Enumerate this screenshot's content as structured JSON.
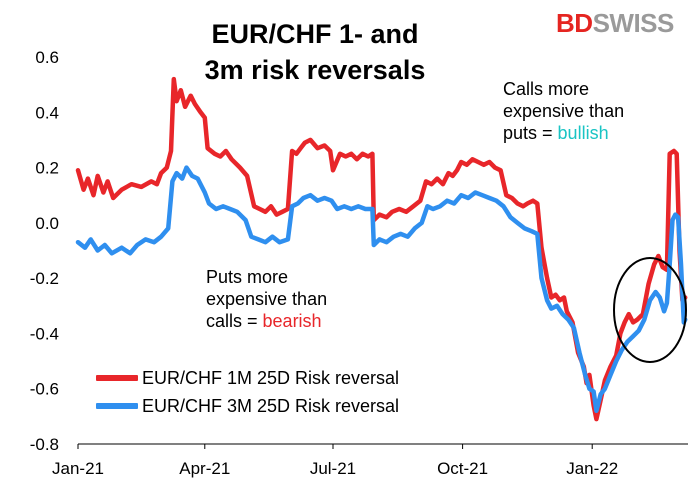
{
  "chart_data": {
    "type": "line",
    "title_line1": "EUR/CHF 1- and",
    "title_line2": "3m risk reversals",
    "xlabel": "",
    "ylabel": "",
    "ylim": [
      -0.8,
      0.6
    ],
    "yticks": [
      0.6,
      0.4,
      0.2,
      0.0,
      -0.2,
      -0.4,
      -0.6,
      -0.8
    ],
    "ytick_labels": [
      "0.6",
      "0.4",
      "0.2",
      "0.0",
      "-0.2",
      "-0.4",
      "-0.6",
      "-0.8"
    ],
    "xlim": [
      "2021-01-01",
      "2022-03-10"
    ],
    "xticks": [
      "2021-01-01",
      "2021-04-01",
      "2021-07-01",
      "2021-10-01",
      "2022-01-01"
    ],
    "xtick_labels": [
      "Jan-21",
      "Apr-21",
      "Jul-21",
      "Oct-21",
      "Jan-22"
    ],
    "grid": false,
    "legend_position": "lower-left",
    "series": [
      {
        "name": "EUR/CHF 1M 25D Risk reversal",
        "color": "#e8262a",
        "points": [
          [
            "2021-01-01",
            0.19
          ],
          [
            "2021-01-05",
            0.12
          ],
          [
            "2021-01-08",
            0.16
          ],
          [
            "2021-01-12",
            0.1
          ],
          [
            "2021-01-15",
            0.17
          ],
          [
            "2021-01-19",
            0.11
          ],
          [
            "2021-01-22",
            0.15
          ],
          [
            "2021-01-26",
            0.09
          ],
          [
            "2021-02-01",
            0.12
          ],
          [
            "2021-02-08",
            0.14
          ],
          [
            "2021-02-15",
            0.13
          ],
          [
            "2021-02-22",
            0.15
          ],
          [
            "2021-02-26",
            0.14
          ],
          [
            "2021-03-01",
            0.18
          ],
          [
            "2021-03-05",
            0.2
          ],
          [
            "2021-03-08",
            0.26
          ],
          [
            "2021-03-10",
            0.52
          ],
          [
            "2021-03-12",
            0.44
          ],
          [
            "2021-03-15",
            0.48
          ],
          [
            "2021-03-18",
            0.42
          ],
          [
            "2021-03-22",
            0.46
          ],
          [
            "2021-03-25",
            0.43
          ],
          [
            "2021-03-29",
            0.4
          ],
          [
            "2021-04-01",
            0.38
          ],
          [
            "2021-04-03",
            0.27
          ],
          [
            "2021-04-08",
            0.25
          ],
          [
            "2021-04-12",
            0.24
          ],
          [
            "2021-04-16",
            0.26
          ],
          [
            "2021-04-20",
            0.23
          ],
          [
            "2021-04-26",
            0.2
          ],
          [
            "2021-05-01",
            0.17
          ],
          [
            "2021-05-06",
            0.06
          ],
          [
            "2021-05-10",
            0.05
          ],
          [
            "2021-05-14",
            0.04
          ],
          [
            "2021-05-18",
            0.06
          ],
          [
            "2021-05-22",
            0.03
          ],
          [
            "2021-05-26",
            0.04
          ],
          [
            "2021-05-30",
            0.05
          ],
          [
            "2021-06-02",
            0.26
          ],
          [
            "2021-06-05",
            0.25
          ],
          [
            "2021-06-08",
            0.27
          ],
          [
            "2021-06-11",
            0.29
          ],
          [
            "2021-06-15",
            0.3
          ],
          [
            "2021-06-20",
            0.27
          ],
          [
            "2021-06-25",
            0.28
          ],
          [
            "2021-06-29",
            0.26
          ],
          [
            "2021-07-01",
            0.19
          ],
          [
            "2021-07-06",
            0.25
          ],
          [
            "2021-07-10",
            0.24
          ],
          [
            "2021-07-14",
            0.25
          ],
          [
            "2021-07-18",
            0.23
          ],
          [
            "2021-07-22",
            0.25
          ],
          [
            "2021-07-26",
            0.24
          ],
          [
            "2021-07-29",
            0.25
          ],
          [
            "2021-07-30",
            0.01
          ],
          [
            "2021-08-03",
            0.03
          ],
          [
            "2021-08-08",
            0.02
          ],
          [
            "2021-08-12",
            0.04
          ],
          [
            "2021-08-17",
            0.05
          ],
          [
            "2021-08-22",
            0.04
          ],
          [
            "2021-08-27",
            0.06
          ],
          [
            "2021-09-01",
            0.08
          ],
          [
            "2021-09-05",
            0.15
          ],
          [
            "2021-09-09",
            0.14
          ],
          [
            "2021-09-13",
            0.16
          ],
          [
            "2021-09-17",
            0.14
          ],
          [
            "2021-09-21",
            0.18
          ],
          [
            "2021-09-24",
            0.17
          ],
          [
            "2021-09-27",
            0.19
          ],
          [
            "2021-09-30",
            0.22
          ],
          [
            "2021-10-04",
            0.21
          ],
          [
            "2021-10-08",
            0.23
          ],
          [
            "2021-10-12",
            0.22
          ],
          [
            "2021-10-16",
            0.21
          ],
          [
            "2021-10-20",
            0.22
          ],
          [
            "2021-10-24",
            0.2
          ],
          [
            "2021-10-28",
            0.19
          ],
          [
            "2021-11-01",
            0.1
          ],
          [
            "2021-11-05",
            0.09
          ],
          [
            "2021-11-09",
            0.07
          ],
          [
            "2021-11-13",
            0.06
          ],
          [
            "2021-11-16",
            0.07
          ],
          [
            "2021-11-20",
            0.08
          ],
          [
            "2021-11-23",
            0.07
          ],
          [
            "2021-11-26",
            -0.09
          ],
          [
            "2021-11-30",
            -0.2
          ],
          [
            "2021-12-03",
            -0.27
          ],
          [
            "2021-12-06",
            -0.26
          ],
          [
            "2021-12-09",
            -0.28
          ],
          [
            "2021-12-12",
            -0.27
          ],
          [
            "2021-12-14",
            -0.32
          ],
          [
            "2021-12-18",
            -0.36
          ],
          [
            "2021-12-22",
            -0.47
          ],
          [
            "2021-12-26",
            -0.52
          ],
          [
            "2021-12-28",
            -0.58
          ],
          [
            "2021-12-30",
            -0.55
          ],
          [
            "2022-01-02",
            -0.66
          ],
          [
            "2022-01-04",
            -0.71
          ],
          [
            "2022-01-07",
            -0.64
          ],
          [
            "2022-01-10",
            -0.57
          ],
          [
            "2022-01-14",
            -0.52
          ],
          [
            "2022-01-18",
            -0.48
          ],
          [
            "2022-01-21",
            -0.4
          ],
          [
            "2022-01-24",
            -0.36
          ],
          [
            "2022-01-27",
            -0.33
          ],
          [
            "2022-01-30",
            -0.36
          ],
          [
            "2022-02-02",
            -0.35
          ],
          [
            "2022-02-06",
            -0.33
          ],
          [
            "2022-02-10",
            -0.22
          ],
          [
            "2022-02-14",
            -0.15
          ],
          [
            "2022-02-17",
            -0.12
          ],
          [
            "2022-02-20",
            -0.16
          ],
          [
            "2022-02-23",
            -0.17
          ],
          [
            "2022-02-25",
            0.25
          ],
          [
            "2022-02-28",
            0.26
          ],
          [
            "2022-03-02",
            0.25
          ],
          [
            "2022-03-04",
            -0.1
          ],
          [
            "2022-03-06",
            -0.28
          ],
          [
            "2022-03-08",
            -0.27
          ]
        ]
      },
      {
        "name": "EUR/CHF 3M 25D Risk reversal",
        "color": "#2f8fef",
        "points": [
          [
            "2021-01-01",
            -0.07
          ],
          [
            "2021-01-06",
            -0.09
          ],
          [
            "2021-01-10",
            -0.06
          ],
          [
            "2021-01-15",
            -0.1
          ],
          [
            "2021-01-20",
            -0.08
          ],
          [
            "2021-01-25",
            -0.11
          ],
          [
            "2021-02-01",
            -0.09
          ],
          [
            "2021-02-07",
            -0.11
          ],
          [
            "2021-02-12",
            -0.08
          ],
          [
            "2021-02-18",
            -0.06
          ],
          [
            "2021-02-24",
            -0.07
          ],
          [
            "2021-03-01",
            -0.05
          ],
          [
            "2021-03-06",
            -0.02
          ],
          [
            "2021-03-09",
            0.15
          ],
          [
            "2021-03-12",
            0.18
          ],
          [
            "2021-03-16",
            0.16
          ],
          [
            "2021-03-19",
            0.2
          ],
          [
            "2021-03-23",
            0.17
          ],
          [
            "2021-03-27",
            0.16
          ],
          [
            "2021-04-01",
            0.11
          ],
          [
            "2021-04-04",
            0.07
          ],
          [
            "2021-04-09",
            0.05
          ],
          [
            "2021-04-14",
            0.06
          ],
          [
            "2021-04-19",
            0.05
          ],
          [
            "2021-04-24",
            0.04
          ],
          [
            "2021-04-30",
            0.01
          ],
          [
            "2021-05-04",
            -0.05
          ],
          [
            "2021-05-09",
            -0.06
          ],
          [
            "2021-05-14",
            -0.07
          ],
          [
            "2021-05-19",
            -0.05
          ],
          [
            "2021-05-24",
            -0.07
          ],
          [
            "2021-05-30",
            -0.06
          ],
          [
            "2021-06-02",
            0.06
          ],
          [
            "2021-06-06",
            0.07
          ],
          [
            "2021-06-10",
            0.09
          ],
          [
            "2021-06-15",
            0.1
          ],
          [
            "2021-06-20",
            0.08
          ],
          [
            "2021-06-25",
            0.09
          ],
          [
            "2021-06-30",
            0.08
          ],
          [
            "2021-07-04",
            0.05
          ],
          [
            "2021-07-09",
            0.06
          ],
          [
            "2021-07-14",
            0.05
          ],
          [
            "2021-07-19",
            0.06
          ],
          [
            "2021-07-24",
            0.05
          ],
          [
            "2021-07-29",
            0.05
          ],
          [
            "2021-07-30",
            -0.08
          ],
          [
            "2021-08-03",
            -0.06
          ],
          [
            "2021-08-08",
            -0.07
          ],
          [
            "2021-08-13",
            -0.05
          ],
          [
            "2021-08-18",
            -0.04
          ],
          [
            "2021-08-23",
            -0.05
          ],
          [
            "2021-08-28",
            -0.02
          ],
          [
            "2021-09-02",
            0.0
          ],
          [
            "2021-09-06",
            0.06
          ],
          [
            "2021-09-10",
            0.05
          ],
          [
            "2021-09-15",
            0.06
          ],
          [
            "2021-09-20",
            0.08
          ],
          [
            "2021-09-25",
            0.07
          ],
          [
            "2021-09-30",
            0.1
          ],
          [
            "2021-10-05",
            0.09
          ],
          [
            "2021-10-10",
            0.11
          ],
          [
            "2021-10-15",
            0.1
          ],
          [
            "2021-10-20",
            0.09
          ],
          [
            "2021-10-25",
            0.08
          ],
          [
            "2021-10-30",
            0.06
          ],
          [
            "2021-11-04",
            0.02
          ],
          [
            "2021-11-09",
            0.0
          ],
          [
            "2021-11-14",
            -0.02
          ],
          [
            "2021-11-19",
            -0.03
          ],
          [
            "2021-11-23",
            -0.04
          ],
          [
            "2021-11-26",
            -0.2
          ],
          [
            "2021-11-30",
            -0.28
          ],
          [
            "2021-12-03",
            -0.31
          ],
          [
            "2021-12-07",
            -0.3
          ],
          [
            "2021-12-11",
            -0.33
          ],
          [
            "2021-12-15",
            -0.35
          ],
          [
            "2021-12-19",
            -0.38
          ],
          [
            "2021-12-23",
            -0.47
          ],
          [
            "2021-12-27",
            -0.55
          ],
          [
            "2021-12-30",
            -0.6
          ],
          [
            "2022-01-02",
            -0.61
          ],
          [
            "2022-01-04",
            -0.68
          ],
          [
            "2022-01-07",
            -0.62
          ],
          [
            "2022-01-10",
            -0.6
          ],
          [
            "2022-01-14",
            -0.55
          ],
          [
            "2022-01-18",
            -0.5
          ],
          [
            "2022-01-22",
            -0.46
          ],
          [
            "2022-01-26",
            -0.43
          ],
          [
            "2022-01-30",
            -0.41
          ],
          [
            "2022-02-03",
            -0.39
          ],
          [
            "2022-02-07",
            -0.35
          ],
          [
            "2022-02-11",
            -0.28
          ],
          [
            "2022-02-15",
            -0.25
          ],
          [
            "2022-02-18",
            -0.27
          ],
          [
            "2022-02-21",
            -0.32
          ],
          [
            "2022-02-23",
            -0.29
          ],
          [
            "2022-02-25",
            -0.15
          ],
          [
            "2022-02-27",
            0.01
          ],
          [
            "2022-03-01",
            0.03
          ],
          [
            "2022-03-03",
            0.02
          ],
          [
            "2022-03-05",
            -0.15
          ],
          [
            "2022-03-07",
            -0.36
          ],
          [
            "2022-03-08",
            -0.35
          ]
        ]
      }
    ]
  },
  "branding": {
    "logo_bd": "BD",
    "logo_swiss": "SWISS"
  },
  "annotations": {
    "calls_line1": "Calls more",
    "calls_line2": "expensive than",
    "calls_line3_prefix": "puts = ",
    "calls_highlight": "bullish",
    "calls_highlight_color": "#19c4c4",
    "puts_line1": "Puts more",
    "puts_line2": "expensive than",
    "puts_line3_prefix": "calls = ",
    "puts_highlight": "bearish",
    "puts_highlight_color": "#e8262a"
  }
}
